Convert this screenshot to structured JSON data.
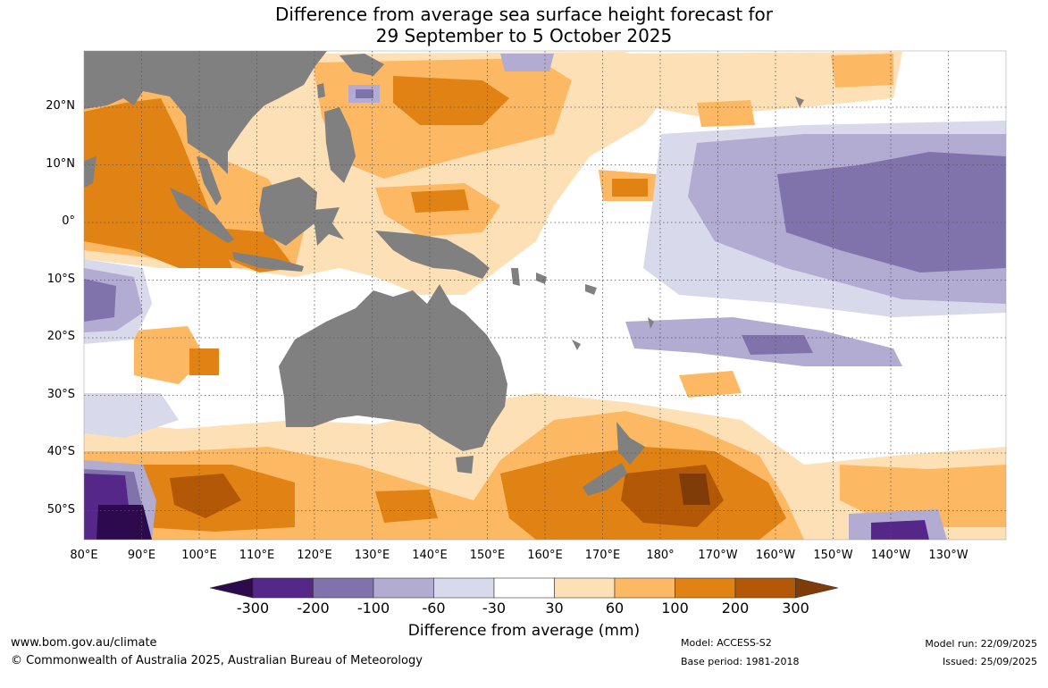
{
  "title": {
    "line1": "Difference from average sea surface height forecast for",
    "line2": "29 September to 5 October 2025"
  },
  "map": {
    "lon_range": [
      80,
      240
    ],
    "lat_range": [
      -55,
      30
    ],
    "lat_labels": [
      "20°N",
      "10°N",
      "0°",
      "10°S",
      "20°S",
      "30°S",
      "40°S",
      "50°S"
    ],
    "lon_labels": [
      "80°E",
      "90°E",
      "100°E",
      "110°E",
      "120°E",
      "130°E",
      "140°E",
      "150°E",
      "160°E",
      "170°E",
      "180°",
      "170°W",
      "160°W",
      "150°W",
      "140°W",
      "130°W"
    ],
    "land_color": "#808080",
    "grid": "dotted"
  },
  "colorbar": {
    "ticks": [
      "-300",
      "-200",
      "-100",
      "-60",
      "-30",
      "30",
      "60",
      "100",
      "200",
      "300"
    ],
    "colors": [
      "#2d0a4e",
      "#542788",
      "#8073ac",
      "#b2abd2",
      "#d8daeb",
      "#ffffff",
      "#fee0b6",
      "#fdb863",
      "#e08214",
      "#b35806",
      "#7f3b08"
    ],
    "label": "Difference from average (mm)"
  },
  "footer": {
    "website": "www.bom.gov.au/climate",
    "copyright": "© Commonwealth of Australia 2025, Australian Bureau of Meteorology",
    "model": "Model: ACCESS-S2",
    "base_period": "Base period: 1981-2018",
    "model_run": "Model run: 22/09/2025",
    "issued": "Issued: 25/09/2025"
  }
}
